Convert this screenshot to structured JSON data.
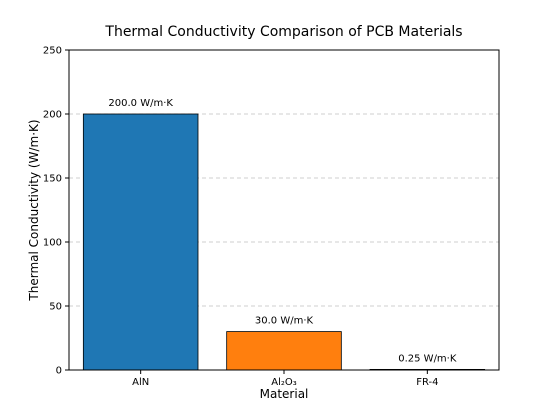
{
  "chart_data": {
    "type": "bar",
    "title": "Thermal Conductivity Comparison of PCB Materials",
    "xlabel": "Material",
    "ylabel": "Thermal Conductivity (W/m·K)",
    "categories": [
      "AlN",
      "Al₂O₃",
      "FR-4"
    ],
    "values": [
      200.0,
      30.0,
      0.25
    ],
    "data_labels": [
      "200.0 W/m·K",
      "30.0 W/m·K",
      "0.25 W/m·K"
    ],
    "bar_colors": [
      "#1f77b4",
      "#ff7f0e",
      "#2ca02c"
    ],
    "ylim": [
      0,
      250
    ],
    "yticks": [
      0,
      50,
      100,
      150,
      200,
      250
    ],
    "ytick_labels": [
      "0",
      "50",
      "100",
      "150",
      "200",
      "250"
    ],
    "grid": "y-dashed",
    "legend": "none"
  }
}
